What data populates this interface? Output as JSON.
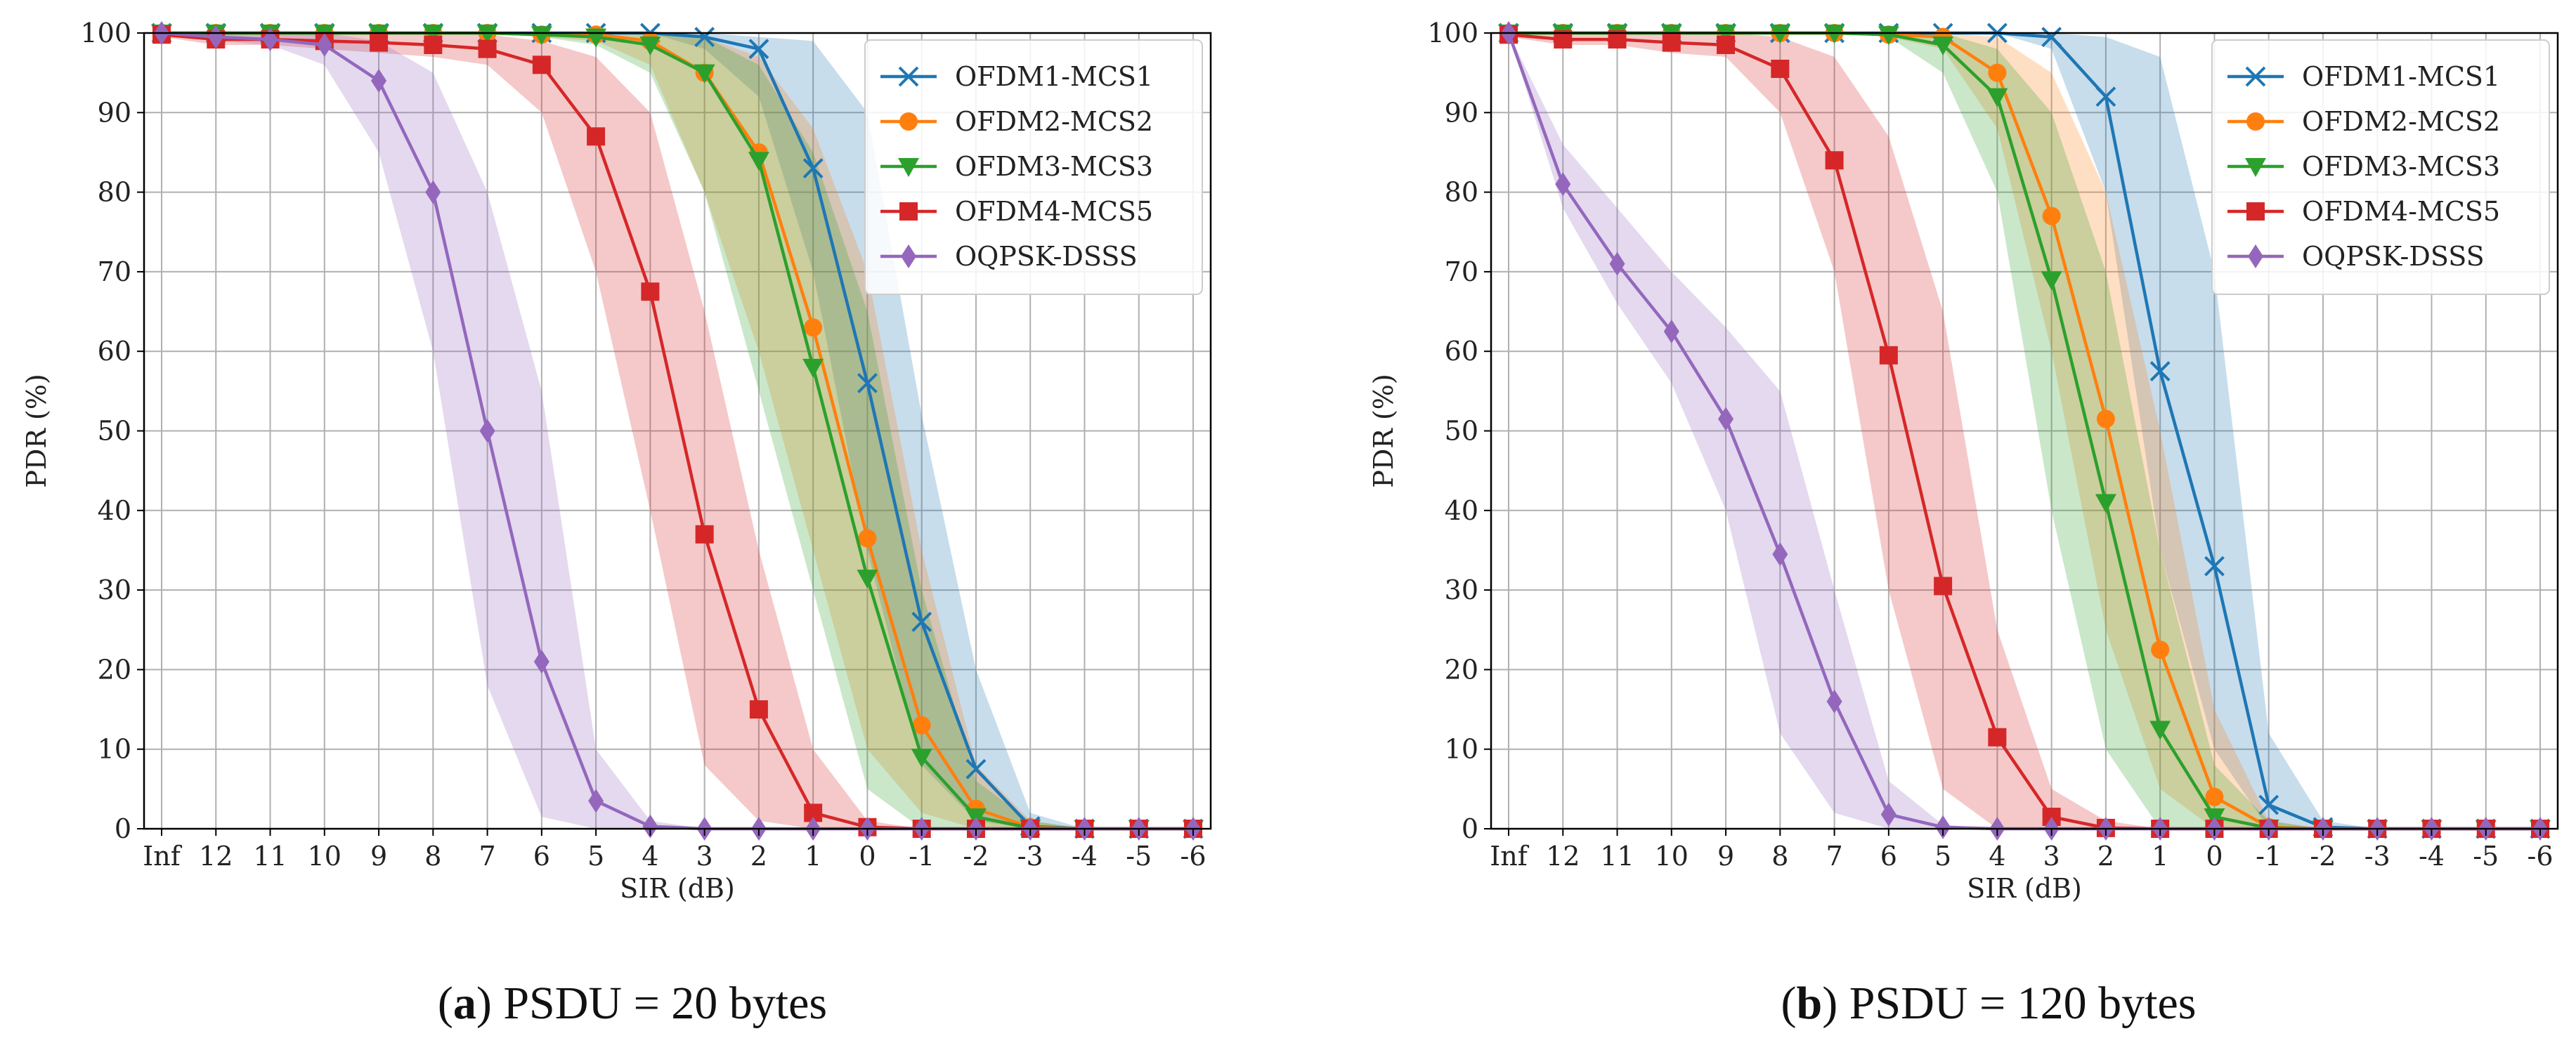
{
  "colors": {
    "OFDM1-MCS1": "#1f77b4",
    "OFDM2-MCS2": "#ff7f0e",
    "OFDM3-MCS3": "#2ca02c",
    "OFDM4-MCS5": "#d62728",
    "OQPSK-DSSS": "#9467bd"
  },
  "markers": {
    "OFDM1-MCS1": "x",
    "OFDM2-MCS2": "circle",
    "OFDM3-MCS3": "triangle-down",
    "OFDM4-MCS5": "square",
    "OQPSK-DSSS": "diamond"
  },
  "chart_data": [
    {
      "type": "line",
      "caption_letter": "a",
      "caption_text": "PSDU = 20 bytes",
      "xlabel": "SIR (dB)",
      "ylabel": "PDR (%)",
      "ylim": [
        0,
        100
      ],
      "yticks": [
        "0",
        "10",
        "20",
        "30",
        "40",
        "50",
        "60",
        "70",
        "80",
        "90",
        "100"
      ],
      "categories": [
        "Inf",
        "12",
        "11",
        "10",
        "9",
        "8",
        "7",
        "6",
        "5",
        "4",
        "3",
        "2",
        "1",
        "0",
        "-1",
        "-2",
        "-3",
        "-4",
        "-5",
        "-6"
      ],
      "legend_position": "top-right",
      "grid": true,
      "series": [
        {
          "name": "OFDM1-MCS1",
          "values": [
            100,
            100,
            100,
            100,
            100,
            100,
            100,
            100,
            100,
            100,
            99.5,
            98,
            83,
            56,
            26,
            7.5,
            0.3,
            0,
            0,
            0
          ],
          "band_low": [
            100,
            100,
            100,
            100,
            100,
            100,
            100,
            100,
            100,
            100,
            98,
            92,
            70,
            35,
            8,
            1,
            0,
            0,
            0,
            0
          ],
          "band_high": [
            100,
            100,
            100,
            100,
            100,
            100,
            100,
            100,
            100,
            100,
            100,
            99.5,
            99,
            90,
            52,
            20,
            2,
            0,
            0,
            0
          ]
        },
        {
          "name": "OFDM2-MCS2",
          "values": [
            100,
            100,
            100,
            100,
            100,
            100,
            100,
            99.8,
            99.8,
            99,
            95,
            85,
            63,
            36.5,
            13,
            2.5,
            0.2,
            0,
            0,
            0
          ],
          "band_low": [
            100,
            100,
            100,
            100,
            100,
            100,
            100,
            99.5,
            99,
            96,
            80,
            60,
            35,
            10,
            2,
            0,
            0,
            0,
            0,
            0
          ],
          "band_high": [
            100,
            100,
            100,
            100,
            100,
            100,
            100,
            100,
            100,
            100,
            99.5,
            97,
            88,
            70,
            35,
            8,
            1,
            0,
            0,
            0
          ]
        },
        {
          "name": "OFDM3-MCS3",
          "values": [
            100,
            100,
            100,
            100,
            100,
            100,
            100,
            99.8,
            99.5,
            98.5,
            95,
            84,
            58,
            31.5,
            9,
            1.5,
            0.1,
            0,
            0,
            0
          ],
          "band_low": [
            100,
            100,
            100,
            100,
            100,
            100,
            100,
            99.5,
            98.5,
            95,
            80,
            55,
            30,
            5,
            0,
            0,
            0,
            0,
            0,
            0
          ],
          "band_high": [
            100,
            100,
            100,
            100,
            100,
            100,
            100,
            100,
            100,
            100,
            99.5,
            96,
            85,
            65,
            30,
            6,
            1,
            0,
            0,
            0
          ]
        },
        {
          "name": "OFDM4-MCS5",
          "values": [
            99.8,
            99.2,
            99.2,
            99,
            98.8,
            98.5,
            98,
            96,
            87,
            67.5,
            37,
            15,
            2,
            0.2,
            0,
            0,
            0,
            0,
            0,
            0
          ],
          "band_low": [
            99.5,
            98.5,
            98.5,
            98,
            97.5,
            97,
            96,
            90,
            70,
            40,
            8,
            1,
            0,
            0,
            0,
            0,
            0,
            0,
            0,
            0
          ],
          "band_high": [
            100,
            100,
            100,
            100,
            100,
            100,
            99.8,
            99,
            97,
            90,
            65,
            35,
            10,
            1,
            0,
            0,
            0,
            0,
            0,
            0
          ]
        },
        {
          "name": "OQPSK-DSSS",
          "values": [
            100,
            99.5,
            99.2,
            98.5,
            94,
            80,
            50,
            21,
            3.5,
            0.3,
            0,
            0,
            0,
            0,
            0,
            0,
            0,
            0,
            0,
            0
          ],
          "band_low": [
            100,
            99,
            98.5,
            96,
            85,
            60,
            18,
            1.5,
            0,
            0,
            0,
            0,
            0,
            0,
            0,
            0,
            0,
            0,
            0,
            0
          ],
          "band_high": [
            100,
            100,
            100,
            100,
            99,
            95,
            80,
            55,
            10,
            1,
            0,
            0,
            0,
            0,
            0,
            0,
            0,
            0,
            0,
            0
          ]
        }
      ]
    },
    {
      "type": "line",
      "caption_letter": "b",
      "caption_text": "PSDU = 120 bytes",
      "xlabel": "SIR (dB)",
      "ylabel": "PDR (%)",
      "ylim": [
        0,
        100
      ],
      "yticks": [
        "0",
        "10",
        "20",
        "30",
        "40",
        "50",
        "60",
        "70",
        "80",
        "90",
        "100"
      ],
      "categories": [
        "Inf",
        "12",
        "11",
        "10",
        "9",
        "8",
        "7",
        "6",
        "5",
        "4",
        "3",
        "2",
        "1",
        "0",
        "-1",
        "-2",
        "-3",
        "-4",
        "-5",
        "-6"
      ],
      "legend_position": "top-right",
      "grid": true,
      "series": [
        {
          "name": "OFDM1-MCS1",
          "values": [
            100,
            100,
            100,
            100,
            100,
            100,
            100,
            100,
            100,
            100,
            99.5,
            92,
            57.5,
            33,
            3,
            0.2,
            0,
            0,
            0,
            0
          ],
          "band_low": [
            100,
            100,
            100,
            100,
            100,
            100,
            100,
            100,
            100,
            100,
            98,
            80,
            35,
            10,
            0,
            0,
            0,
            0,
            0,
            0
          ],
          "band_high": [
            100,
            100,
            100,
            100,
            100,
            100,
            100,
            100,
            100,
            100,
            100,
            99.5,
            97,
            70,
            12,
            1,
            0,
            0,
            0,
            0
          ]
        },
        {
          "name": "OFDM2-MCS2",
          "values": [
            100,
            100,
            100,
            100,
            100,
            100,
            100,
            99.8,
            99.5,
            95,
            77,
            51.5,
            22.5,
            4,
            0.2,
            0,
            0,
            0,
            0,
            0
          ],
          "band_low": [
            100,
            100,
            100,
            100,
            100,
            100,
            100,
            99.5,
            98,
            88,
            60,
            25,
            5,
            0,
            0,
            0,
            0,
            0,
            0,
            0
          ],
          "band_high": [
            100,
            100,
            100,
            100,
            100,
            100,
            100,
            100,
            100,
            99.5,
            95,
            80,
            50,
            15,
            1,
            0,
            0,
            0,
            0,
            0
          ]
        },
        {
          "name": "OFDM3-MCS3",
          "values": [
            100,
            100,
            100,
            100,
            100,
            100,
            100,
            99.8,
            98.5,
            92,
            69,
            41,
            12.5,
            1.5,
            0.1,
            0,
            0,
            0,
            0,
            0
          ],
          "band_low": [
            100,
            100,
            100,
            100,
            100,
            100,
            100,
            99.5,
            95,
            80,
            40,
            10,
            0,
            0,
            0,
            0,
            0,
            0,
            0,
            0
          ],
          "band_high": [
            100,
            100,
            100,
            100,
            100,
            100,
            100,
            100,
            100,
            98,
            90,
            70,
            35,
            8,
            1,
            0,
            0,
            0,
            0,
            0
          ]
        },
        {
          "name": "OFDM4-MCS5",
          "values": [
            99.8,
            99.2,
            99.2,
            98.8,
            98.5,
            95.5,
            84,
            59.5,
            30.5,
            11.5,
            1.5,
            0.1,
            0,
            0,
            0,
            0,
            0,
            0,
            0,
            0
          ],
          "band_low": [
            99.5,
            98.5,
            98.5,
            97.5,
            97,
            90,
            70,
            30,
            5,
            0,
            0,
            0,
            0,
            0,
            0,
            0,
            0,
            0,
            0,
            0
          ],
          "band_high": [
            100,
            100,
            100,
            100,
            100,
            99.5,
            97,
            87,
            65,
            25,
            5,
            1,
            0,
            0,
            0,
            0,
            0,
            0,
            0,
            0
          ]
        },
        {
          "name": "OQPSK-DSSS",
          "values": [
            100,
            81,
            71,
            62.5,
            51.5,
            34.5,
            16,
            1.8,
            0.2,
            0,
            0,
            0,
            0,
            0,
            0,
            0,
            0,
            0,
            0,
            0
          ],
          "band_low": [
            100,
            78,
            66,
            56,
            40,
            12,
            2,
            0,
            0,
            0,
            0,
            0,
            0,
            0,
            0,
            0,
            0,
            0,
            0,
            0
          ],
          "band_high": [
            100,
            86,
            78,
            70,
            63,
            55,
            30,
            6,
            0.5,
            0,
            0,
            0,
            0,
            0,
            0,
            0,
            0,
            0,
            0,
            0
          ]
        }
      ]
    }
  ]
}
